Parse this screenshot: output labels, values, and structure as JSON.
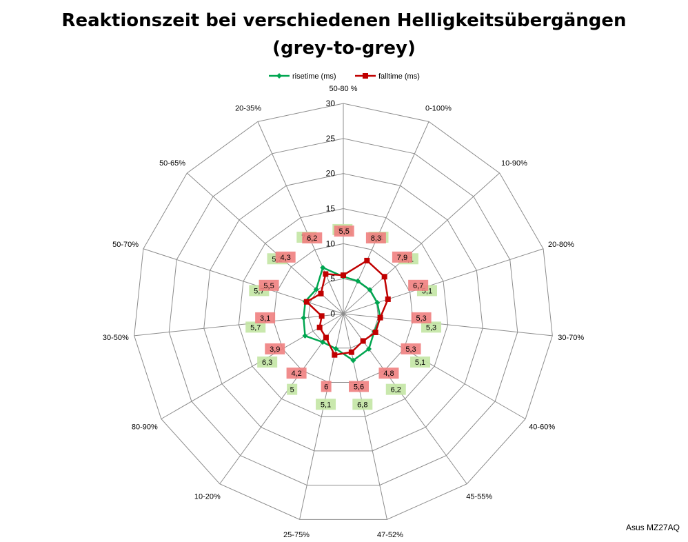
{
  "chart_data": {
    "type": "radar",
    "title": "Reaktionszeit bei verschiedenen Helligkeitsübergängen",
    "subtitle": "(grey-to-grey)",
    "categories": [
      "50-80 %",
      "0-100%",
      "10-90%",
      "20-80%",
      "30-70%",
      "40-60%",
      "45-55%",
      "47-52%",
      "25-75%",
      "10-20%",
      "80-90%",
      "30-50%",
      "50-70%",
      "50-65%",
      "20-35%"
    ],
    "rlim": [
      0,
      30
    ],
    "ticks": [
      0,
      5,
      10,
      15,
      20,
      25,
      30
    ],
    "tick_labels": [
      "0",
      "5",
      "10",
      "15",
      "20",
      "25",
      "30"
    ],
    "grid": true,
    "legend_position": "top",
    "series": [
      {
        "name": "risetime (ms)",
        "color": "#00a650",
        "label_bg": "#c3e5a4",
        "values": [
          5.3,
          5.1,
          5.1,
          5.1,
          5.3,
          5.1,
          6.2,
          6.8,
          5.1,
          5.0,
          6.3,
          5.7,
          5.7,
          5.2,
          7.2
        ],
        "labels": [
          "5,3",
          "5,1",
          "5,1",
          "5,1",
          "5,3",
          "5,1",
          "6,2",
          "6,8",
          "5,1",
          "5",
          "6,3",
          "5,7",
          "5,7",
          "5,2",
          "7,2"
        ]
      },
      {
        "name": "falltime (ms)",
        "color": "#c00000",
        "label_bg": "#f08080",
        "values": [
          5.5,
          8.3,
          7.9,
          6.7,
          5.3,
          5.3,
          4.8,
          5.6,
          6.0,
          4.2,
          3.9,
          3.1,
          5.5,
          4.3,
          6.2
        ],
        "labels": [
          "5,5",
          "8,3",
          "7,9",
          "6,7",
          "5,3",
          "5,3",
          "4,8",
          "5,6",
          "6",
          "4,2",
          "3,9",
          "3,1",
          "5,5",
          "4,3",
          "6,2"
        ]
      }
    ]
  },
  "watermark": "Asus MZ27AQ"
}
